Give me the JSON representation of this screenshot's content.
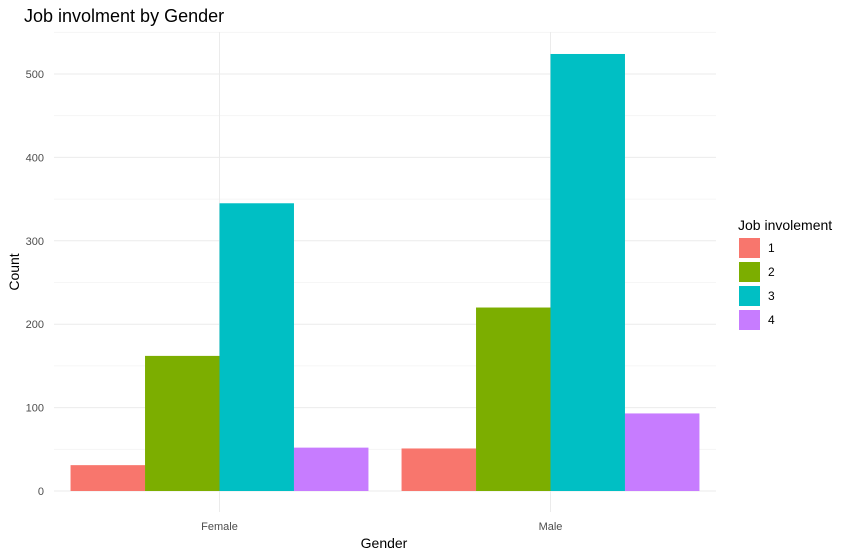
{
  "chart_data": {
    "type": "bar",
    "title": "Job involment by Gender",
    "xlabel": "Gender",
    "ylabel": "Count",
    "categories": [
      "Female",
      "Male"
    ],
    "series": [
      {
        "name": "1",
        "color": "#F8766D",
        "values": [
          31,
          51
        ]
      },
      {
        "name": "2",
        "color": "#7CAE00",
        "values": [
          162,
          220
        ]
      },
      {
        "name": "3",
        "color": "#00BFC4",
        "values": [
          345,
          524
        ]
      },
      {
        "name": "4",
        "color": "#C77CFF",
        "values": [
          52,
          93
        ]
      }
    ],
    "ylim": [
      0,
      550
    ],
    "yticks": [
      0,
      100,
      200,
      300,
      400,
      500
    ],
    "grid": true,
    "legend": {
      "title": "Job involement",
      "placement": "right"
    }
  }
}
